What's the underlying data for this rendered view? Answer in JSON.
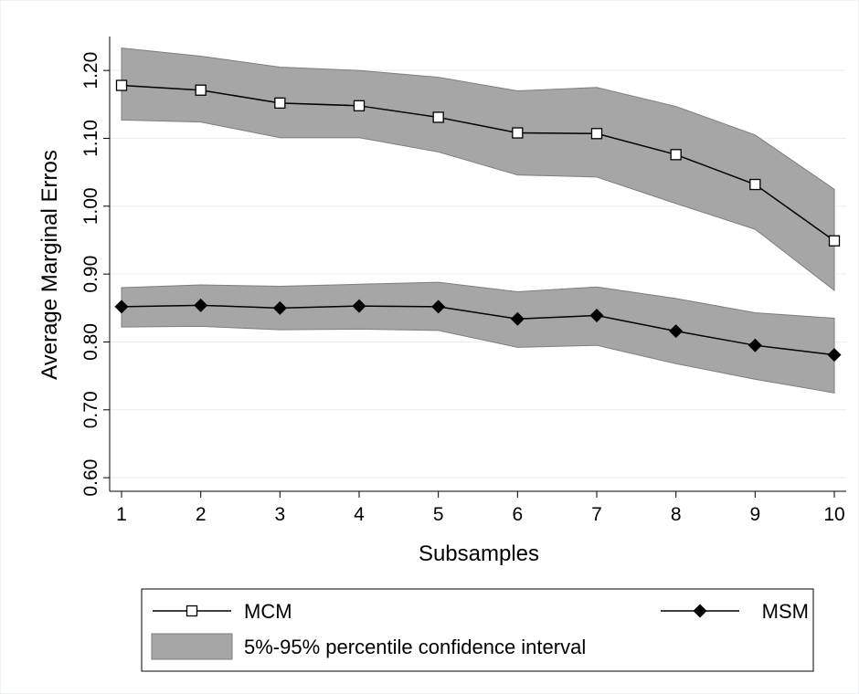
{
  "chart_data": {
    "type": "line",
    "x_label": "Subsamples",
    "y_label": "Average Marginal Erros",
    "x": [
      1,
      2,
      3,
      4,
      5,
      6,
      7,
      8,
      9,
      10
    ],
    "xlim": [
      0.85,
      10.15
    ],
    "xticks": [
      1,
      2,
      3,
      4,
      5,
      6,
      7,
      8,
      9,
      10
    ],
    "ylim": [
      0.58,
      1.25
    ],
    "yticks": [
      {
        "value": 0.6,
        "label": "0.60"
      },
      {
        "value": 0.7,
        "label": "0.70"
      },
      {
        "value": 0.8,
        "label": "0.80"
      },
      {
        "value": 0.9,
        "label": "0.90"
      },
      {
        "value": 1.0,
        "label": "1.00"
      },
      {
        "value": 1.1,
        "label": "1.10"
      },
      {
        "value": 1.2,
        "label": "1.20"
      }
    ],
    "grid": true,
    "series": [
      {
        "name": "MCM",
        "color": "#000000",
        "marker": "square",
        "values": [
          1.178,
          1.171,
          1.152,
          1.148,
          1.131,
          1.108,
          1.107,
          1.076,
          1.032,
          0.949
        ]
      },
      {
        "name": "MSM",
        "color": "#000000",
        "marker": "diamond",
        "values": [
          0.852,
          0.854,
          0.85,
          0.853,
          0.852,
          0.834,
          0.839,
          0.816,
          0.795,
          0.781
        ]
      }
    ],
    "interval_name": "5%-95% percentile confidence interval",
    "interval_color": "#a6a6a6",
    "intervals": [
      {
        "upper": [
          1.233,
          1.221,
          1.205,
          1.2,
          1.19,
          1.17,
          1.175,
          1.147,
          1.105,
          1.025
        ],
        "lower": [
          1.127,
          1.124,
          1.101,
          1.101,
          1.08,
          1.046,
          1.043,
          1.004,
          0.966,
          0.876
        ]
      },
      {
        "upper": [
          0.88,
          0.884,
          0.882,
          0.885,
          0.888,
          0.874,
          0.881,
          0.864,
          0.843,
          0.835
        ],
        "lower": [
          0.822,
          0.823,
          0.818,
          0.819,
          0.817,
          0.792,
          0.795,
          0.768,
          0.745,
          0.725
        ]
      }
    ]
  }
}
